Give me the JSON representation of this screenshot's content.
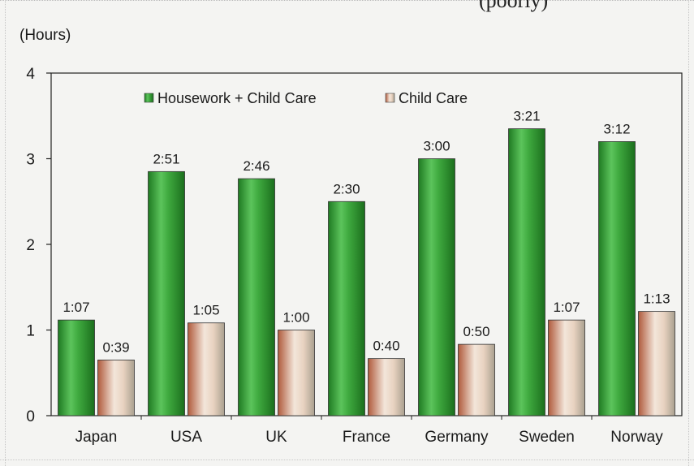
{
  "header_fragment": "(poorly)",
  "chart_data": {
    "type": "bar",
    "unit_label": "(Hours)",
    "categories": [
      "Japan",
      "USA",
      "UK",
      "France",
      "Germany",
      "Sweden",
      "Norway"
    ],
    "series": [
      {
        "name": "Housework + Child Care",
        "values": [
          1.117,
          2.85,
          2.767,
          2.5,
          3.0,
          3.35,
          3.2
        ],
        "labels": [
          "1:07",
          "2:51",
          "2:46",
          "2:30",
          "3:00",
          "3:21",
          "3:12"
        ],
        "color": "#2e9a2e"
      },
      {
        "name": "Child Care",
        "values": [
          0.65,
          1.083,
          1.0,
          0.667,
          0.833,
          1.117,
          1.217
        ],
        "labels": [
          "0:39",
          "1:05",
          "1:00",
          "0:40",
          "0:50",
          "1:07",
          "1:13"
        ],
        "color": "#c8785a"
      }
    ],
    "ylim": [
      0,
      4
    ],
    "yticks": [
      "0",
      "1",
      "2",
      "3",
      "4"
    ],
    "xlabel": "",
    "ylabel": "",
    "legend_position": "top-center",
    "grid": false
  }
}
